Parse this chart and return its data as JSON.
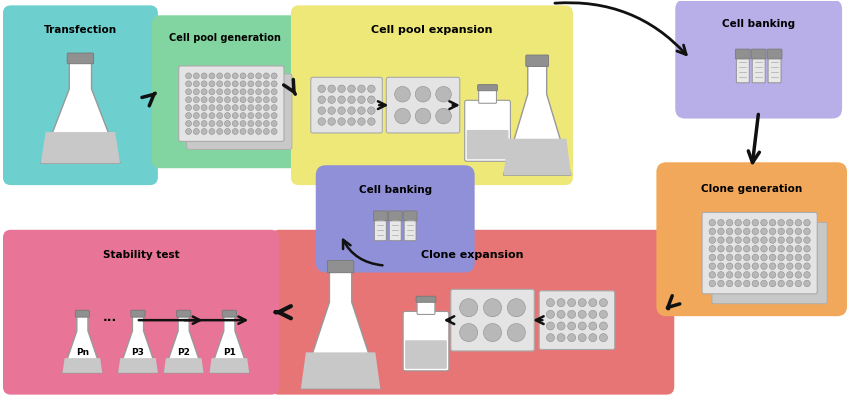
{
  "bg_color": "#ffffff",
  "colors": {
    "transfection": "#6ecfcf",
    "cell_pool_gen": "#82d4a0",
    "cell_pool_exp": "#ede878",
    "cell_banking_top": "#b8aee8",
    "clone_generation": "#f2a85a",
    "clone_expansion": "#e87575",
    "stability_test": "#e87598",
    "cell_banking_mid": "#9090d8",
    "flask_neck_cap": "#909090",
    "flask_liquid": "#c8c8c8",
    "well_plate_bg": "#e4e4e4",
    "well_plate_shadow": "#c8c8c8",
    "well_circle": "#b8b8b8",
    "vial_body": "#e8e8e8",
    "vial_cap": "#909090",
    "bottle_liquid": "#c8c8c8"
  },
  "labels": {
    "transfection": "Transfection",
    "cell_pool_gen": "Cell pool generation",
    "cell_pool_exp": "Cell pool expansion",
    "cell_banking_top": "Cell banking",
    "clone_generation": "Clone generation",
    "clone_expansion": "Clone expansion",
    "stability_test": "Stability test",
    "cell_banking_mid": "Cell banking"
  }
}
